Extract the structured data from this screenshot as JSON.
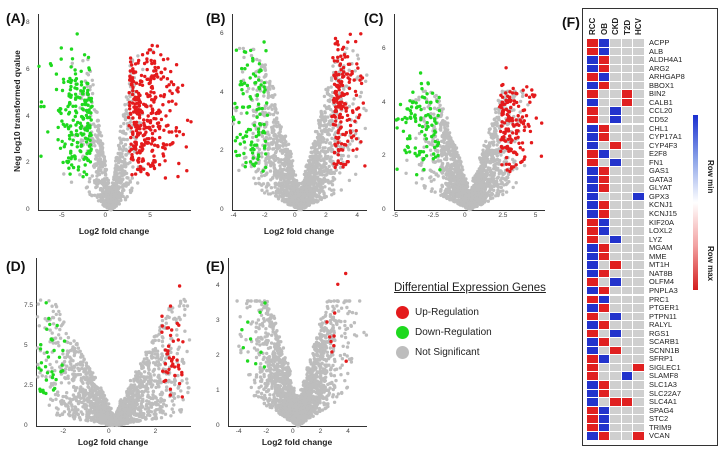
{
  "colors": {
    "up": "#e41a1c",
    "down": "#1fd91f",
    "ns": "#bdbdbd",
    "hm_blue": "#2233cc",
    "hm_red": "#e02020",
    "hm_gray": "#cfcfcf"
  },
  "y_axis_label": "Neg log10 transformed qvalue",
  "x_axis_label": "Log2 fold change",
  "chart_data": [
    {
      "type": "scatter",
      "panel": "(A)",
      "xlabel": "Log2 fold change",
      "ylabel": "Neg log10 transformed qvalue",
      "xlim": [
        -8,
        9
      ],
      "ylim": [
        0,
        8.4
      ],
      "x_ticks": [
        -5,
        0,
        5
      ],
      "y_ticks": [
        0,
        2,
        4,
        6,
        8
      ],
      "threshold": 2,
      "peak_y": 8,
      "up_count": 330,
      "down_count": 200,
      "ns_count": 700
    },
    {
      "type": "scatter",
      "panel": "(B)",
      "xlabel": "Log2 fold change",
      "ylabel": "",
      "xlim": [
        -4.3,
        4.3
      ],
      "ylim": [
        0,
        6.7
      ],
      "x_ticks": [
        -4,
        -2,
        0,
        2,
        4
      ],
      "y_ticks": [
        0,
        2,
        4,
        6
      ],
      "threshold": 2,
      "peak_y": 6.5,
      "up_count": 180,
      "down_count": 120,
      "ns_count": 1500
    },
    {
      "type": "scatter",
      "panel": "(C)",
      "xlabel": "",
      "ylabel": "",
      "xlim": [
        -5.3,
        5.3
      ],
      "ylim": [
        0,
        7.3
      ],
      "x_ticks": [
        -5.0,
        -2.5,
        0.0,
        2.5,
        5.0
      ],
      "y_ticks": [
        0,
        2,
        4,
        6
      ],
      "threshold": 2,
      "peak_y": 5.2,
      "up_count": 150,
      "down_count": 110,
      "ns_count": 1500
    },
    {
      "type": "scatter",
      "panel": "(D)",
      "xlabel": "Log2 fold change",
      "ylabel": "",
      "xlim": [
        -3.3,
        3.3
      ],
      "ylim": [
        0,
        10.5
      ],
      "x_ticks": [
        -2,
        0,
        2
      ],
      "y_ticks": [
        0.0,
        2.5,
        5.0,
        7.5
      ],
      "threshold": 2,
      "peak_y": 9.7,
      "up_count": 45,
      "down_count": 45,
      "ns_count": 1500
    },
    {
      "type": "scatter",
      "panel": "(E)",
      "xlabel": "Log2 fold change",
      "ylabel": "",
      "xlim": [
        -5,
        5
      ],
      "ylim": [
        0,
        4.8
      ],
      "x_ticks": [
        -4,
        -2,
        0,
        2,
        4
      ],
      "y_ticks": [
        0,
        1,
        2,
        3,
        4
      ],
      "threshold": 2,
      "peak_y": 4.2,
      "up_count": 10,
      "down_count": 12,
      "ns_count": 1800
    },
    {
      "type": "heatmap",
      "panel": "(F)",
      "columns": [
        "RCC",
        "OB",
        "CKD",
        "T2D",
        "HCV"
      ],
      "rows": [
        "ACPP",
        "ALB",
        "ALDH4A1",
        "ARG2",
        "ARHGAP8",
        "BBOX1",
        "BIN2",
        "CALB1",
        "CCL20",
        "CD52",
        "CHL1",
        "CYP17A1",
        "CYP4F3",
        "E2F8",
        "FN1",
        "GAS1",
        "GATA3",
        "GLYAT",
        "GPX3",
        "KCNJ1",
        "KCNJ15",
        "KIF20A",
        "LOXL2",
        "LYZ",
        "MGAM",
        "MME",
        "MT1H",
        "NAT8B",
        "OLFM4",
        "PNPLA3",
        "PRC1",
        "PTGER1",
        "PTPN11",
        "RALYL",
        "RGS1",
        "SCARB1",
        "SCNN1B",
        "SFRP1",
        "SIGLEC1",
        "SLAMF8",
        "SLC1A3",
        "SLC22A7",
        "SLC4A1",
        "SPAG4",
        "STC2",
        "TRIM9",
        "VCAN"
      ],
      "values": [
        [
          "R",
          "B",
          "G",
          "G",
          "G"
        ],
        [
          "R",
          "B",
          "G",
          "G",
          "G"
        ],
        [
          "B",
          "R",
          "G",
          "G",
          "G"
        ],
        [
          "B",
          "R",
          "G",
          "G",
          "G"
        ],
        [
          "R",
          "B",
          "G",
          "G",
          "G"
        ],
        [
          "B",
          "R",
          "G",
          "G",
          "G"
        ],
        [
          "R",
          "G",
          "G",
          "R",
          "G"
        ],
        [
          "B",
          "G",
          "G",
          "R",
          "G"
        ],
        [
          "R",
          "G",
          "B",
          "G",
          "G"
        ],
        [
          "R",
          "G",
          "B",
          "G",
          "G"
        ],
        [
          "B",
          "R",
          "G",
          "G",
          "G"
        ],
        [
          "B",
          "R",
          "G",
          "G",
          "G"
        ],
        [
          "B",
          "G",
          "R",
          "G",
          "G"
        ],
        [
          "R",
          "B",
          "G",
          "G",
          "G"
        ],
        [
          "R",
          "G",
          "B",
          "G",
          "G"
        ],
        [
          "B",
          "R",
          "G",
          "G",
          "G"
        ],
        [
          "B",
          "R",
          "G",
          "G",
          "G"
        ],
        [
          "B",
          "R",
          "G",
          "G",
          "G"
        ],
        [
          "B",
          "G",
          "G",
          "G",
          "B"
        ],
        [
          "B",
          "R",
          "G",
          "G",
          "G"
        ],
        [
          "B",
          "R",
          "G",
          "G",
          "G"
        ],
        [
          "R",
          "B",
          "G",
          "G",
          "G"
        ],
        [
          "R",
          "B",
          "G",
          "G",
          "G"
        ],
        [
          "R",
          "G",
          "B",
          "G",
          "G"
        ],
        [
          "B",
          "R",
          "G",
          "G",
          "G"
        ],
        [
          "B",
          "R",
          "G",
          "G",
          "G"
        ],
        [
          "B",
          "G",
          "R",
          "G",
          "G"
        ],
        [
          "B",
          "R",
          "G",
          "G",
          "G"
        ],
        [
          "R",
          "G",
          "B",
          "G",
          "G"
        ],
        [
          "B",
          "R",
          "G",
          "G",
          "G"
        ],
        [
          "R",
          "B",
          "G",
          "G",
          "G"
        ],
        [
          "B",
          "R",
          "G",
          "G",
          "G"
        ],
        [
          "R",
          "G",
          "B",
          "G",
          "G"
        ],
        [
          "B",
          "R",
          "G",
          "G",
          "G"
        ],
        [
          "R",
          "G",
          "B",
          "G",
          "G"
        ],
        [
          "B",
          "R",
          "G",
          "G",
          "G"
        ],
        [
          "B",
          "G",
          "R",
          "G",
          "G"
        ],
        [
          "R",
          "B",
          "G",
          "G",
          "G"
        ],
        [
          "R",
          "G",
          "G",
          "G",
          "R"
        ],
        [
          "R",
          "G",
          "G",
          "B",
          "G"
        ],
        [
          "B",
          "R",
          "G",
          "G",
          "G"
        ],
        [
          "B",
          "R",
          "G",
          "G",
          "G"
        ],
        [
          "B",
          "G",
          "R",
          "R",
          "G"
        ],
        [
          "R",
          "B",
          "G",
          "G",
          "G"
        ],
        [
          "R",
          "B",
          "G",
          "G",
          "G"
        ],
        [
          "R",
          "B",
          "G",
          "G",
          "G"
        ],
        [
          "B",
          "R",
          "G",
          "G",
          "R"
        ]
      ]
    }
  ],
  "legend": {
    "title": "Differential Expression Genes",
    "items": [
      {
        "label": "Up-Regulation",
        "color": "#e41a1c"
      },
      {
        "label": "Down-Regulation",
        "color": "#1fd91f"
      },
      {
        "label": "Not Significant",
        "color": "#bdbdbd"
      }
    ]
  },
  "colorbar": {
    "min_label": "Row min",
    "max_label": "Row max"
  }
}
